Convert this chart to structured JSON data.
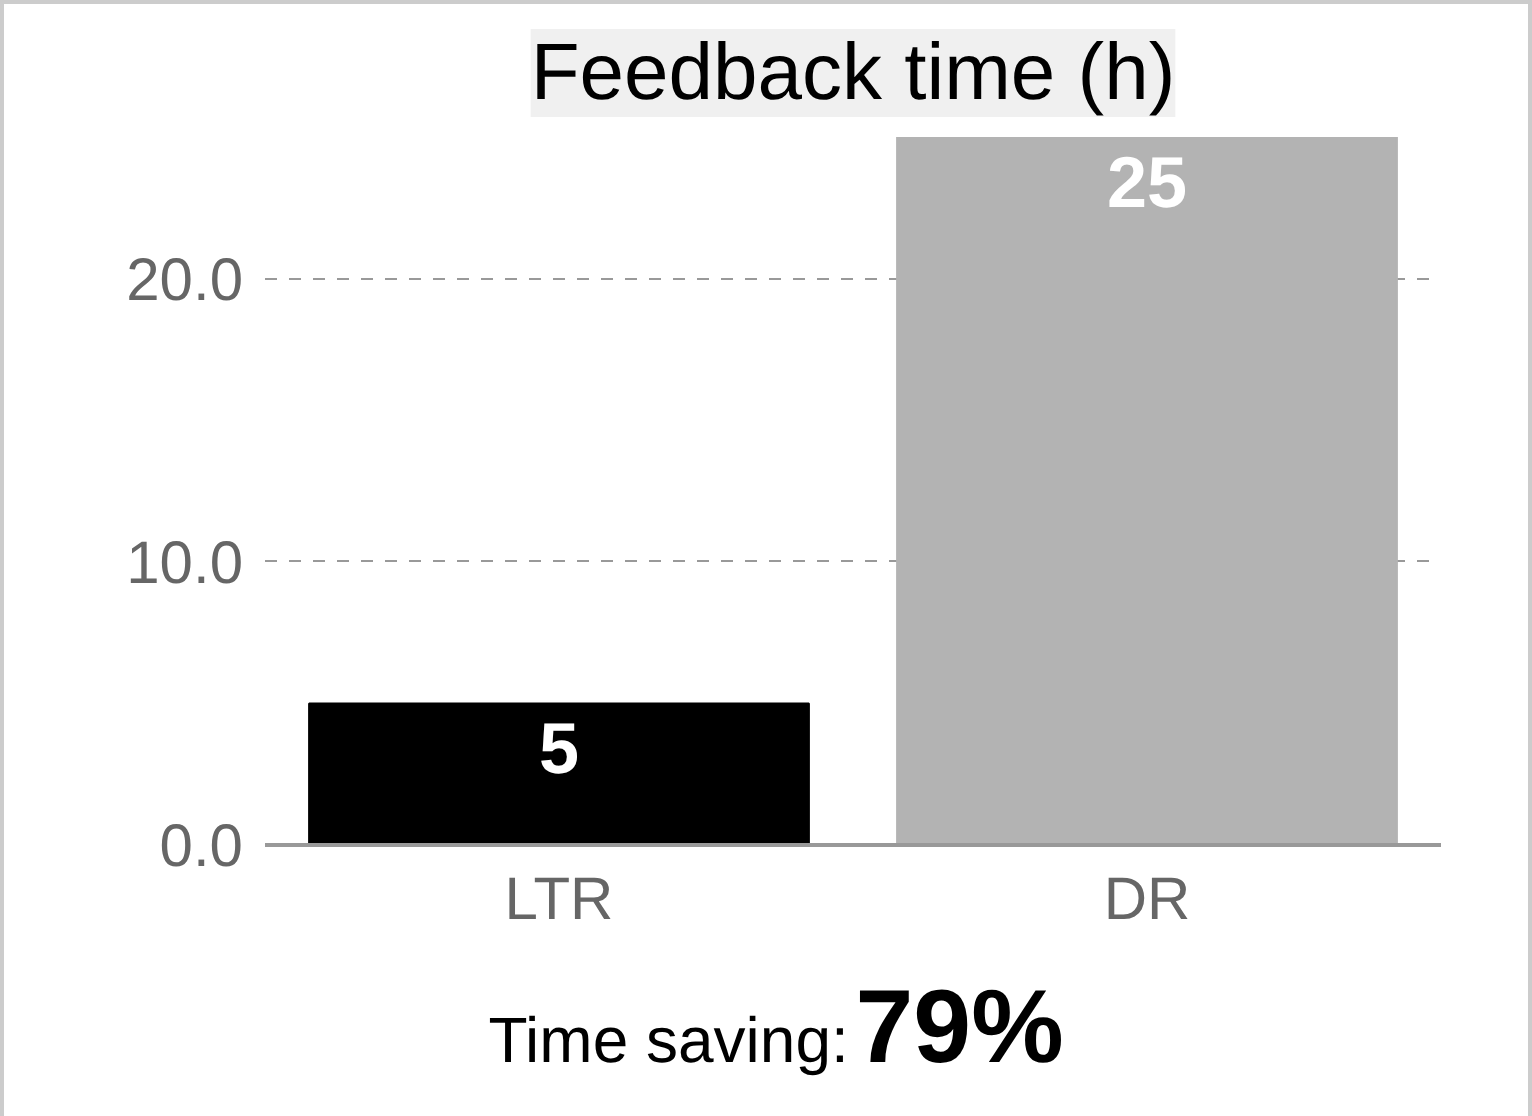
{
  "chart_data": {
    "type": "bar",
    "title": "Feedback time (h)",
    "categories": [
      "LTR",
      "DR"
    ],
    "values": [
      5,
      25
    ],
    "colors": [
      "#000000",
      "#b3b3b3"
    ],
    "ylim": [
      0,
      25
    ],
    "yticks": [
      {
        "value": 0,
        "label": "0.0"
      },
      {
        "value": 10,
        "label": "10.0"
      },
      {
        "value": 20,
        "label": "20.0"
      }
    ],
    "grid": "y",
    "data_labels": true,
    "annotations": [
      "Time saving:",
      "79%"
    ]
  }
}
